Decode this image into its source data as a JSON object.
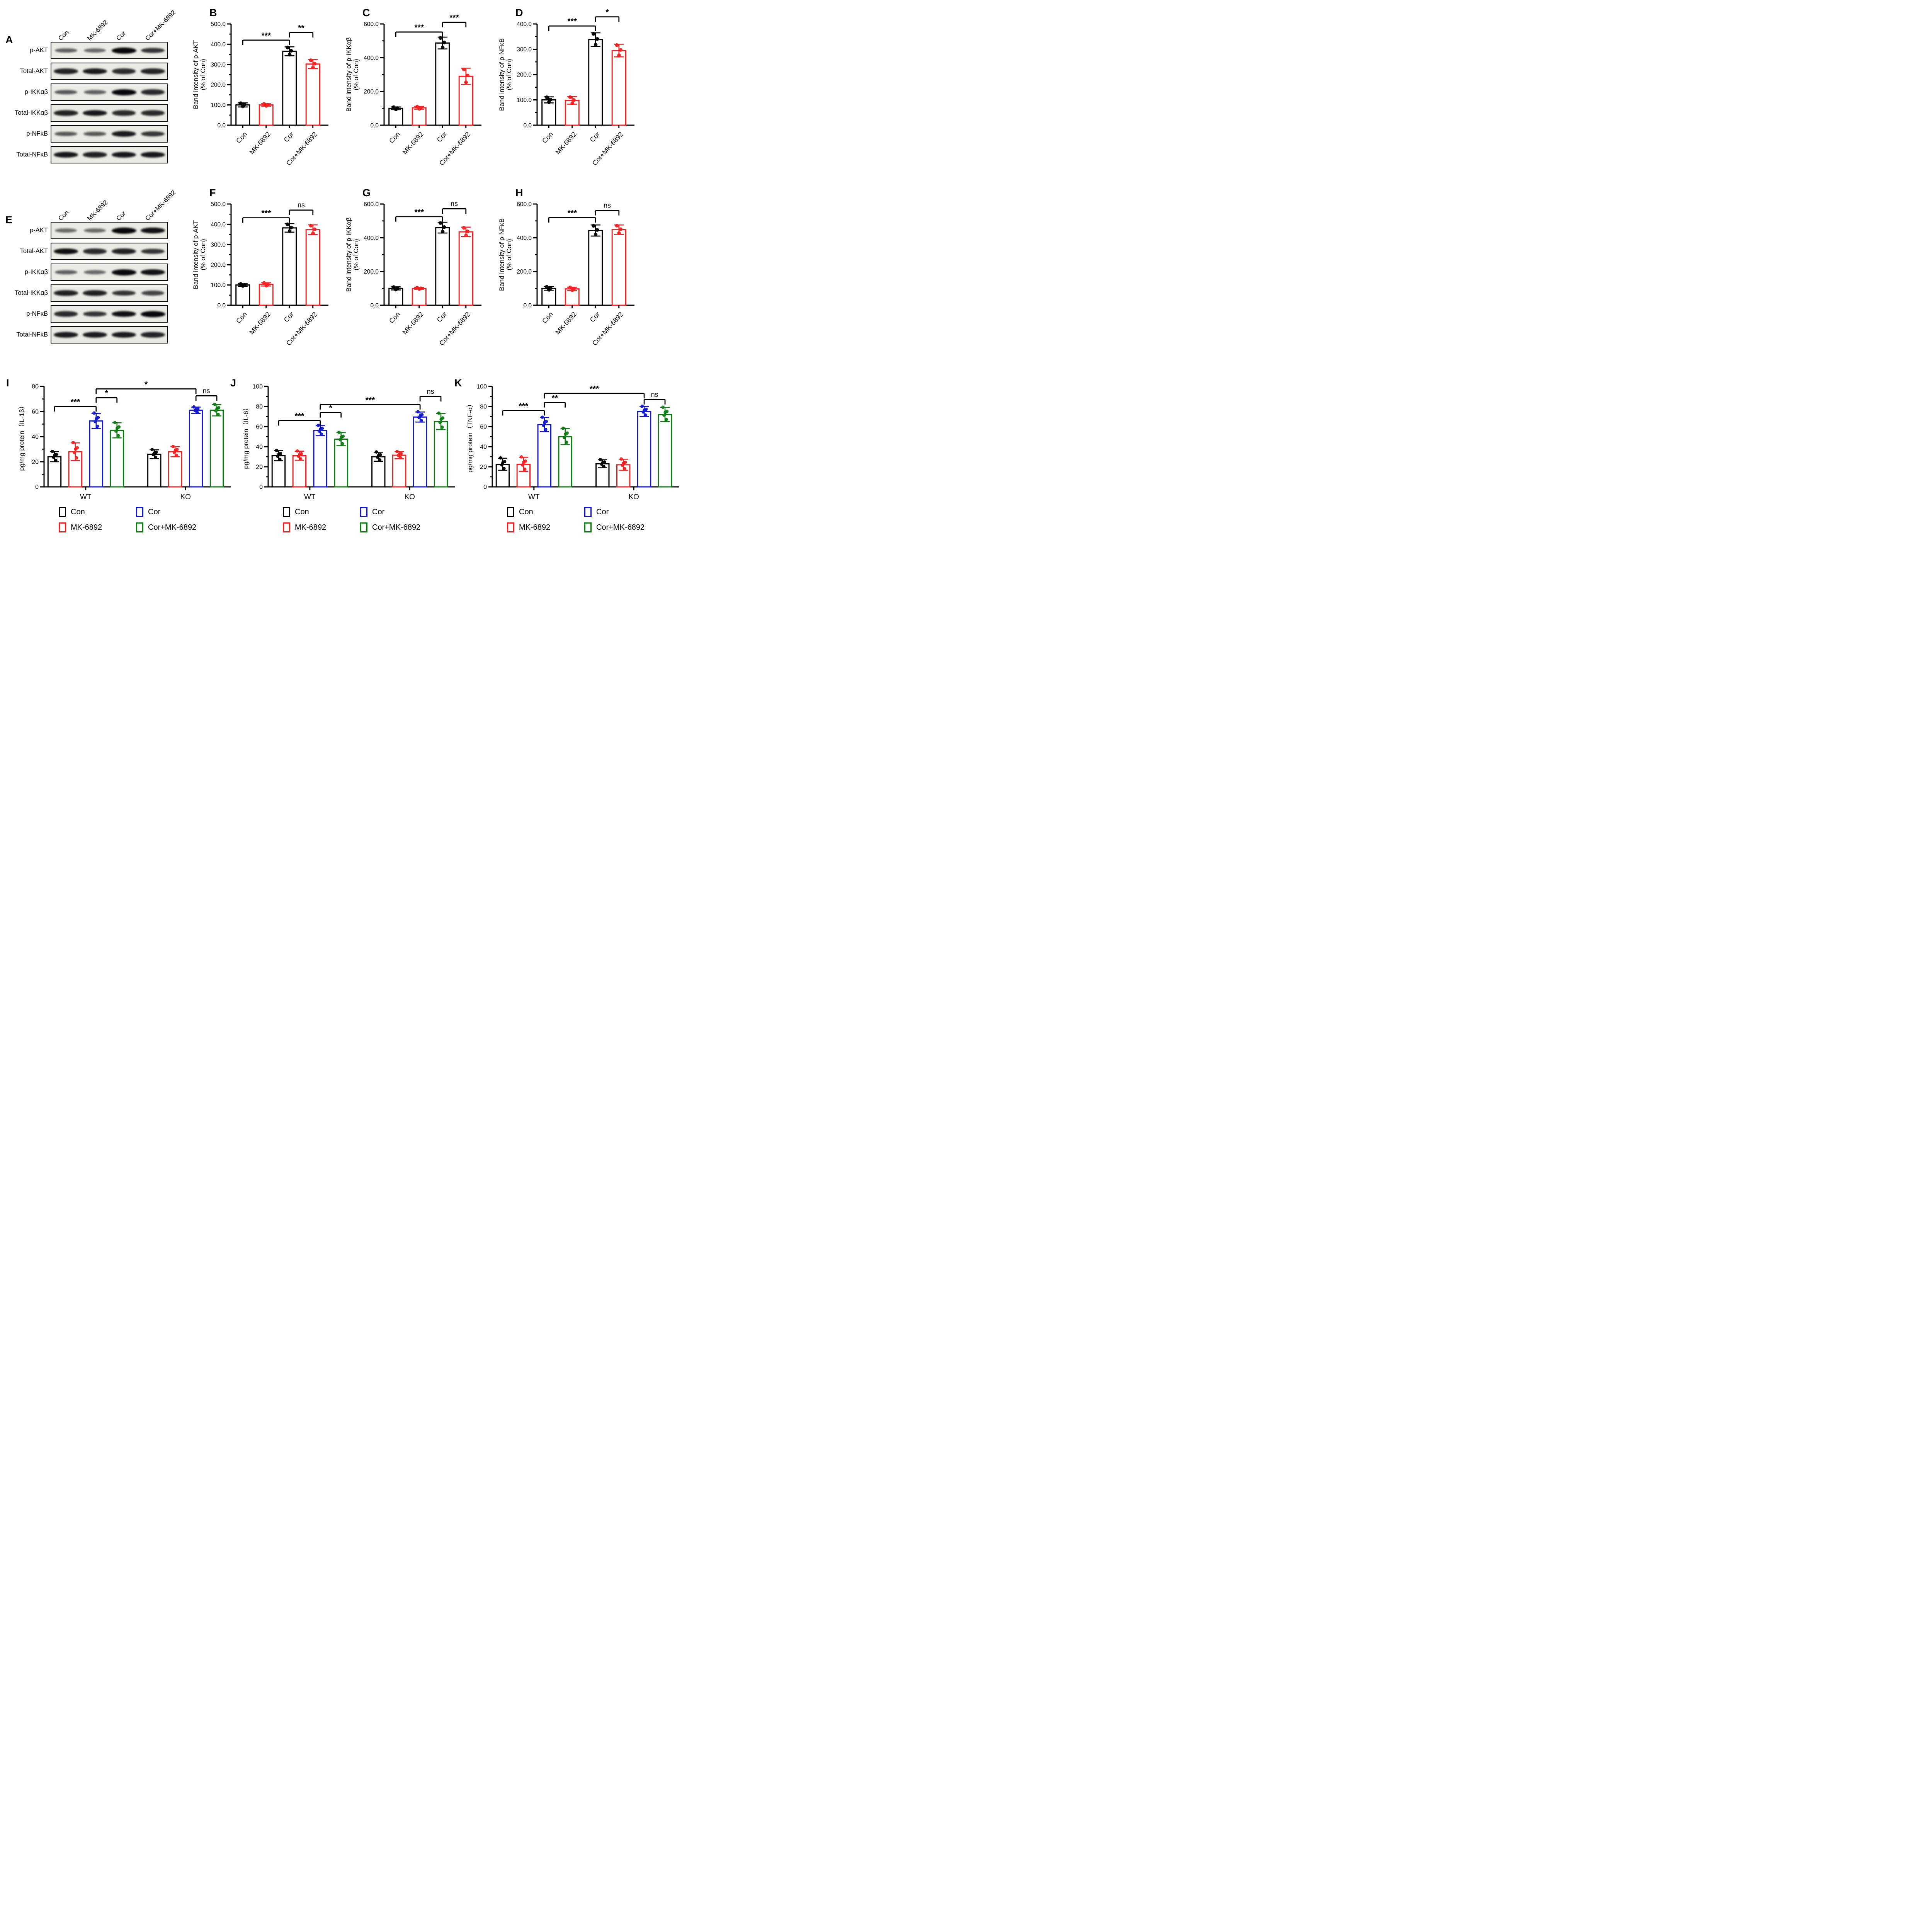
{
  "colors": {
    "con": "#000000",
    "mk6892": "#f32222",
    "cor": "#1418cc",
    "cor_mk": "#0d7c12"
  },
  "legend": {
    "items": [
      {
        "label": "Con",
        "color": "#000000"
      },
      {
        "label": "Cor",
        "color": "#1418cc"
      },
      {
        "label": "MK-6892",
        "color": "#f32222"
      },
      {
        "label": "Cor+MK-6892",
        "color": "#0d7c12"
      }
    ]
  },
  "blot_panels": [
    {
      "letter": "A",
      "lanes": [
        "Con",
        "MK-6892",
        "Cor",
        "Cor+MK-6892"
      ],
      "rows": [
        {
          "label": "p-AKT",
          "bands": [
            0.5,
            0.45,
            1,
            0.75
          ]
        },
        {
          "label": "Total-AKT",
          "bands": [
            0.85,
            0.9,
            0.8,
            0.85
          ]
        },
        {
          "label": "p-IKKαβ",
          "bands": [
            0.55,
            0.5,
            1,
            0.8
          ]
        },
        {
          "label": "Total-IKKαβ",
          "bands": [
            0.85,
            0.9,
            0.8,
            0.8
          ]
        },
        {
          "label": "p-NFκB",
          "bands": [
            0.55,
            0.55,
            0.9,
            0.75
          ]
        },
        {
          "label": "Total-NFκB",
          "bands": [
            0.9,
            0.85,
            0.9,
            0.9
          ]
        }
      ]
    },
    {
      "letter": "E",
      "lanes": [
        "Con",
        "MK-6892",
        "Cor",
        "Cor+MK-6892"
      ],
      "rows": [
        {
          "label": "p-AKT",
          "bands": [
            0.45,
            0.45,
            1,
            0.95
          ]
        },
        {
          "label": "Total-AKT",
          "bands": [
            0.95,
            0.8,
            0.85,
            0.75
          ]
        },
        {
          "label": "p-IKKαβ",
          "bands": [
            0.5,
            0.45,
            1,
            0.95
          ]
        },
        {
          "label": "Total-IKKαβ",
          "bands": [
            0.85,
            0.85,
            0.75,
            0.65
          ]
        },
        {
          "label": "p-NFκB",
          "bands": [
            0.8,
            0.75,
            0.95,
            1
          ]
        },
        {
          "label": "Total-NFκB",
          "bands": [
            0.9,
            0.9,
            0.9,
            0.85
          ]
        }
      ]
    }
  ],
  "chart_data": [
    {
      "id": "B",
      "letter": "B",
      "type": "bar",
      "dots": 3,
      "ylabel": [
        "Band intensity of p-AKT",
        "(% of Con)"
      ],
      "ylim": [
        0,
        500
      ],
      "yticks": [
        {
          "v": 0,
          "t": "0.0"
        },
        {
          "v": 100,
          "t": "100.0"
        },
        {
          "v": 200,
          "t": "200.0"
        },
        {
          "v": 300,
          "t": "300.0"
        },
        {
          "v": 400,
          "t": "400.0"
        },
        {
          "v": 500,
          "t": "500.0"
        }
      ],
      "bars": [
        {
          "label": "Con",
          "value": 100,
          "err": 10,
          "color": "#000000"
        },
        {
          "label": "MK-6892",
          "value": 100,
          "err": 6,
          "color": "#f32222"
        },
        {
          "label": "Cor",
          "value": 365,
          "err": 22,
          "color": "#000000"
        },
        {
          "label": "Cor+MK-6892",
          "value": 302,
          "err": 22,
          "color": "#f32222"
        }
      ],
      "sig": [
        {
          "a": 0,
          "b": 2,
          "label": "***",
          "y": 420
        },
        {
          "a": 2,
          "b": 3,
          "label": "**",
          "y": 458
        }
      ]
    },
    {
      "id": "C",
      "letter": "C",
      "type": "bar",
      "dots": 3,
      "ylabel": [
        "Band intensity of p-IKKαβ",
        "(% of Con)"
      ],
      "ylim": [
        0,
        600
      ],
      "yticks": [
        {
          "v": 0,
          "t": "0.0"
        },
        {
          "v": 200,
          "t": "200.0"
        },
        {
          "v": 400,
          "t": "400.0"
        },
        {
          "v": 600,
          "t": "600.0"
        }
      ],
      "bars": [
        {
          "label": "Con",
          "value": 100,
          "err": 8,
          "color": "#000000"
        },
        {
          "label": "MK-6892",
          "value": 103,
          "err": 8,
          "color": "#f32222"
        },
        {
          "label": "Cor",
          "value": 487,
          "err": 35,
          "color": "#000000"
        },
        {
          "label": "Cor+MK-6892",
          "value": 290,
          "err": 48,
          "color": "#f32222"
        }
      ],
      "sig": [
        {
          "a": 0,
          "b": 2,
          "label": "***",
          "y": 552
        },
        {
          "a": 2,
          "b": 3,
          "label": "***",
          "y": 610
        }
      ]
    },
    {
      "id": "D",
      "letter": "D",
      "type": "bar",
      "dots": 3,
      "ylabel": [
        "Band intensity of p-NFκB",
        "(% of Con)"
      ],
      "ylim": [
        0,
        400
      ],
      "yticks": [
        {
          "v": 0,
          "t": "0.0"
        },
        {
          "v": 100,
          "t": "100.0"
        },
        {
          "v": 200,
          "t": "200.0"
        },
        {
          "v": 300,
          "t": "300.0"
        },
        {
          "v": 400,
          "t": "400.0"
        }
      ],
      "bars": [
        {
          "label": "Con",
          "value": 100,
          "err": 12,
          "color": "#000000"
        },
        {
          "label": "MK-6892",
          "value": 98,
          "err": 15,
          "color": "#f32222"
        },
        {
          "label": "Cor",
          "value": 338,
          "err": 27,
          "color": "#000000"
        },
        {
          "label": "Cor+MK-6892",
          "value": 295,
          "err": 25,
          "color": "#f32222"
        }
      ],
      "sig": [
        {
          "a": 0,
          "b": 2,
          "label": "***",
          "y": 392
        },
        {
          "a": 2,
          "b": 3,
          "label": "*",
          "y": 428
        }
      ]
    },
    {
      "id": "F",
      "letter": "F",
      "type": "bar",
      "dots": 3,
      "ylabel": [
        "Band intensity of p-AKT",
        "(% of Con)"
      ],
      "ylim": [
        0,
        500
      ],
      "yticks": [
        {
          "v": 0,
          "t": "0.0"
        },
        {
          "v": 100,
          "t": "100.0"
        },
        {
          "v": 200,
          "t": "200.0"
        },
        {
          "v": 300,
          "t": "300.0"
        },
        {
          "v": 400,
          "t": "400.0"
        },
        {
          "v": 500,
          "t": "500.0"
        }
      ],
      "bars": [
        {
          "label": "Con",
          "value": 100,
          "err": 6,
          "color": "#000000"
        },
        {
          "label": "MK-6892",
          "value": 103,
          "err": 8,
          "color": "#f32222"
        },
        {
          "label": "Cor",
          "value": 382,
          "err": 21,
          "color": "#000000"
        },
        {
          "label": "Cor+MK-6892",
          "value": 373,
          "err": 24,
          "color": "#f32222"
        }
      ],
      "sig": [
        {
          "a": 0,
          "b": 2,
          "label": "***",
          "y": 432
        },
        {
          "a": 2,
          "b": 3,
          "label": "ns",
          "y": 470
        }
      ]
    },
    {
      "id": "G",
      "letter": "G",
      "type": "bar",
      "dots": 3,
      "ylabel": [
        "Band intensity of p-IKKαβ",
        "(% of Con)"
      ],
      "ylim": [
        0,
        600
      ],
      "yticks": [
        {
          "v": 0,
          "t": "0.0"
        },
        {
          "v": 200,
          "t": "200.0"
        },
        {
          "v": 400,
          "t": "400.0"
        },
        {
          "v": 600,
          "t": "600.0"
        }
      ],
      "bars": [
        {
          "label": "Con",
          "value": 100,
          "err": 9,
          "color": "#000000"
        },
        {
          "label": "MK-6892",
          "value": 100,
          "err": 5,
          "color": "#f32222"
        },
        {
          "label": "Cor",
          "value": 460,
          "err": 32,
          "color": "#000000"
        },
        {
          "label": "Cor+MK-6892",
          "value": 435,
          "err": 28,
          "color": "#f32222"
        }
      ],
      "sig": [
        {
          "a": 0,
          "b": 2,
          "label": "***",
          "y": 525
        },
        {
          "a": 2,
          "b": 3,
          "label": "ns",
          "y": 572
        }
      ]
    },
    {
      "id": "H",
      "letter": "H",
      "type": "bar",
      "dots": 3,
      "ylabel": [
        "Band intensity of p-NFκB",
        "(% of Con)"
      ],
      "ylim": [
        0,
        600
      ],
      "yticks": [
        {
          "v": 0,
          "t": "0.0"
        },
        {
          "v": 200,
          "t": "200.0"
        },
        {
          "v": 400,
          "t": "400.0"
        },
        {
          "v": 600,
          "t": "600.0"
        }
      ],
      "bars": [
        {
          "label": "Con",
          "value": 100,
          "err": 11,
          "color": "#000000"
        },
        {
          "label": "MK-6892",
          "value": 97,
          "err": 10,
          "color": "#f32222"
        },
        {
          "label": "Cor",
          "value": 443,
          "err": 33,
          "color": "#000000"
        },
        {
          "label": "Cor+MK-6892",
          "value": 448,
          "err": 28,
          "color": "#f32222"
        }
      ],
      "sig": [
        {
          "a": 0,
          "b": 2,
          "label": "***",
          "y": 520
        },
        {
          "a": 2,
          "b": 3,
          "label": "ns",
          "y": 562
        }
      ]
    },
    {
      "id": "I",
      "letter": "I",
      "type": "grouped_bar",
      "dots": 5,
      "ylabel": [
        "pg/mg protein（IL-1β）"
      ],
      "ylim": [
        0,
        80
      ],
      "yticks": [
        {
          "v": 0,
          "t": "0"
        },
        {
          "v": 20,
          "t": "20"
        },
        {
          "v": 40,
          "t": "40"
        },
        {
          "v": 60,
          "t": "60"
        },
        {
          "v": 80,
          "t": "80"
        }
      ],
      "groups": [
        {
          "label": "WT",
          "bars": [
            {
              "label": "Con",
              "value": 24,
              "err": 4,
              "color": "#000000"
            },
            {
              "label": "MK-6892",
              "value": 28,
              "err": 7,
              "color": "#f32222"
            },
            {
              "label": "Cor",
              "value": 52.5,
              "err": 6,
              "color": "#1418cc"
            },
            {
              "label": "Cor+MK-6892",
              "value": 45,
              "err": 6,
              "color": "#0d7c12"
            }
          ]
        },
        {
          "label": "KO",
          "bars": [
            {
              "label": "Con",
              "value": 26,
              "err": 3.5,
              "color": "#000000"
            },
            {
              "label": "MK-6892",
              "value": 28,
              "err": 4,
              "color": "#f32222"
            },
            {
              "label": "Cor",
              "value": 61,
              "err": 2.5,
              "color": "#1418cc"
            },
            {
              "label": "Cor+MK-6892",
              "value": 61,
              "err": 4.5,
              "color": "#0d7c12"
            }
          ]
        }
      ],
      "sig": [
        {
          "a": 0,
          "b": 2,
          "label": "***",
          "y": 64
        },
        {
          "a": 2,
          "b": 3,
          "label": "*",
          "y": 71
        },
        {
          "a": 2,
          "b": 6,
          "label": "*",
          "y": 78
        },
        {
          "a": 6,
          "b": 7,
          "label": "ns",
          "y": 72.5
        }
      ]
    },
    {
      "id": "J",
      "letter": "J",
      "type": "grouped_bar",
      "dots": 5,
      "ylabel": [
        "pg/mg protein（IL-6）"
      ],
      "ylim": [
        0,
        100
      ],
      "yticks": [
        {
          "v": 0,
          "t": "0"
        },
        {
          "v": 20,
          "t": "20"
        },
        {
          "v": 40,
          "t": "40"
        },
        {
          "v": 60,
          "t": "60"
        },
        {
          "v": 80,
          "t": "80"
        },
        {
          "v": 100,
          "t": "100"
        }
      ],
      "groups": [
        {
          "label": "WT",
          "bars": [
            {
              "label": "Con",
              "value": 31,
              "err": 5,
              "color": "#000000"
            },
            {
              "label": "MK-6892",
              "value": 31,
              "err": 4.5,
              "color": "#f32222"
            },
            {
              "label": "Cor",
              "value": 56,
              "err": 5,
              "color": "#1418cc"
            },
            {
              "label": "Cor+MK-6892",
              "value": 47.5,
              "err": 6.5,
              "color": "#0d7c12"
            }
          ]
        },
        {
          "label": "KO",
          "bars": [
            {
              "label": "Con",
              "value": 30,
              "err": 4.5,
              "color": "#000000"
            },
            {
              "label": "MK-6892",
              "value": 31.5,
              "err": 3.5,
              "color": "#f32222"
            },
            {
              "label": "Cor",
              "value": 69.5,
              "err": 5,
              "color": "#1418cc"
            },
            {
              "label": "Cor+MK-6892",
              "value": 65,
              "err": 8,
              "color": "#0d7c12"
            }
          ]
        }
      ],
      "sig": [
        {
          "a": 0,
          "b": 2,
          "label": "***",
          "y": 66
        },
        {
          "a": 2,
          "b": 3,
          "label": "*",
          "y": 74
        },
        {
          "a": 2,
          "b": 6,
          "label": "***",
          "y": 82
        },
        {
          "a": 6,
          "b": 7,
          "label": "ns",
          "y": 90
        }
      ]
    },
    {
      "id": "K",
      "letter": "K",
      "type": "grouped_bar",
      "dots": 5,
      "ylabel": [
        "pg/mg protein（TNF-α）"
      ],
      "ylim": [
        0,
        100
      ],
      "yticks": [
        {
          "v": 0,
          "t": "0"
        },
        {
          "v": 20,
          "t": "20"
        },
        {
          "v": 40,
          "t": "40"
        },
        {
          "v": 60,
          "t": "60"
        },
        {
          "v": 80,
          "t": "80"
        },
        {
          "v": 100,
          "t": "100"
        }
      ],
      "groups": [
        {
          "label": "WT",
          "bars": [
            {
              "label": "Con",
              "value": 22.5,
              "err": 6,
              "color": "#000000"
            },
            {
              "label": "MK-6892",
              "value": 22.5,
              "err": 7,
              "color": "#f32222"
            },
            {
              "label": "Cor",
              "value": 62,
              "err": 7,
              "color": "#1418cc"
            },
            {
              "label": "Cor+MK-6892",
              "value": 50,
              "err": 8,
              "color": "#0d7c12"
            }
          ]
        },
        {
          "label": "KO",
          "bars": [
            {
              "label": "Con",
              "value": 23,
              "err": 4,
              "color": "#000000"
            },
            {
              "label": "MK-6892",
              "value": 22,
              "err": 5.5,
              "color": "#f32222"
            },
            {
              "label": "Cor",
              "value": 75,
              "err": 5,
              "color": "#1418cc"
            },
            {
              "label": "Cor+MK-6892",
              "value": 72,
              "err": 7,
              "color": "#0d7c12"
            }
          ]
        }
      ],
      "sig": [
        {
          "a": 0,
          "b": 2,
          "label": "***",
          "y": 76
        },
        {
          "a": 2,
          "b": 3,
          "label": "**",
          "y": 84
        },
        {
          "a": 2,
          "b": 6,
          "label": "***",
          "y": 93
        },
        {
          "a": 6,
          "b": 7,
          "label": "ns",
          "y": 87
        }
      ]
    }
  ]
}
